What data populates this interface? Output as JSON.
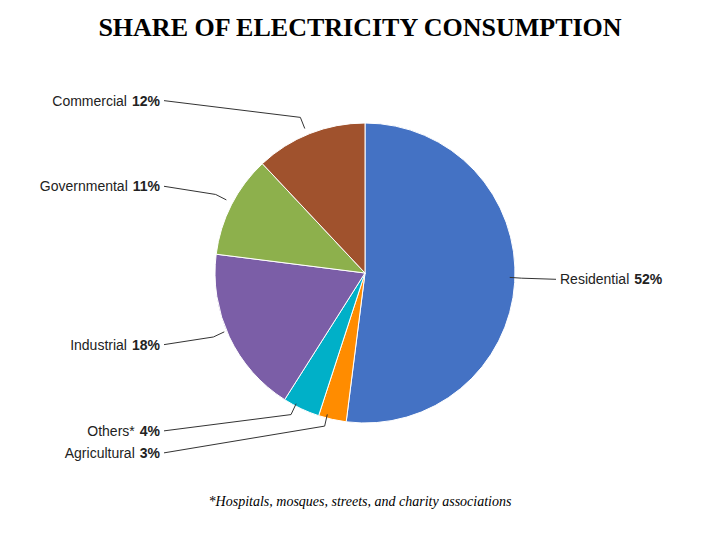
{
  "chart_data": {
    "type": "pie",
    "title": "SHARE OF ELECTRICITY CONSUMPTION",
    "categories": [
      "Residential",
      "Agricultural",
      "Others*",
      "Industrial",
      "Governmental",
      "Commercial"
    ],
    "values": [
      52,
      3,
      4,
      18,
      11,
      12
    ],
    "colors": [
      "#4472C4",
      "#FF8C00",
      "#00B0C8",
      "#7B5EA7",
      "#8DB04C",
      "#A0522D"
    ],
    "data_labels": true,
    "value_labels": [
      "52%",
      "3%",
      "4%",
      "18%",
      "11%",
      "12%"
    ],
    "annotations": [
      "*Hospitals, mosques, streets, and charity associations"
    ]
  }
}
